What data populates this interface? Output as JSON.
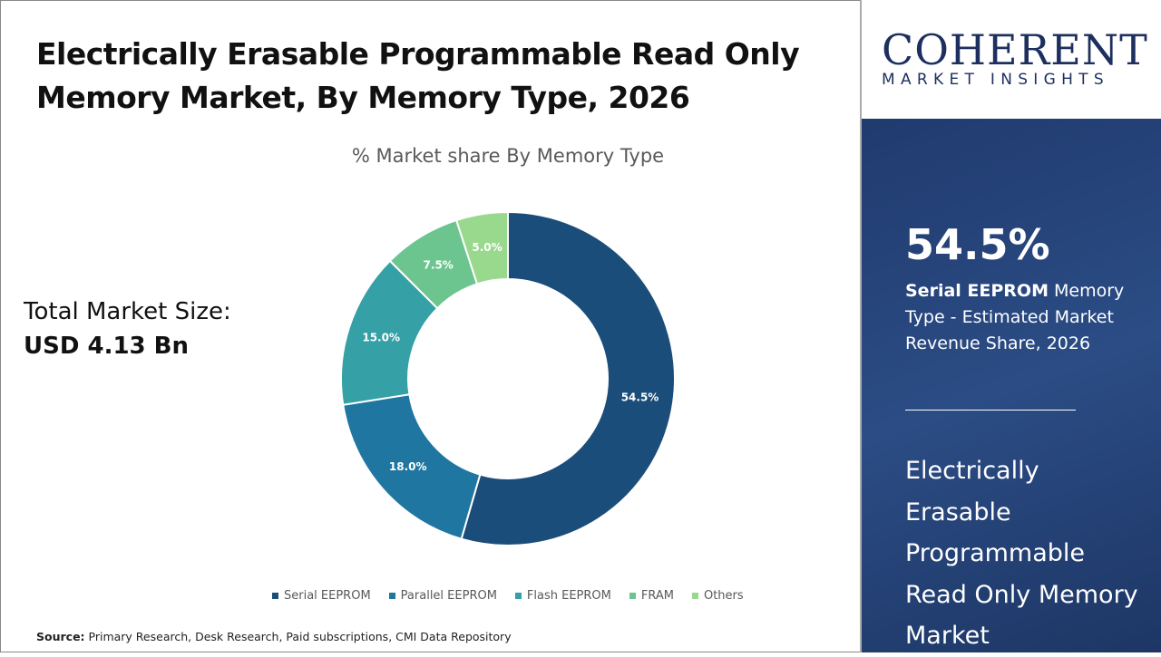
{
  "title": "Electrically Erasable Programmable Read Only Memory Market, By Memory Type, 2026",
  "total": {
    "label": "Total Market Size:",
    "value": "USD 4.13 Bn"
  },
  "source": {
    "label": "Source:",
    "text": "Primary Research, Desk Research, Paid subscriptions, CMI Data Repository"
  },
  "logo": {
    "top": "COHERENT",
    "bottom": "MARKET INSIGHTS"
  },
  "side": {
    "pct": "54.5%",
    "bold": "Serial EEPROM",
    "rest": " Memory Type - Estimated Market Revenue Share, 2026",
    "market": "Electrically Erasable Programmable Read Only Memory Market"
  },
  "chart_data": {
    "type": "pie",
    "donut": true,
    "title": "% Market share By Memory Type",
    "categories": [
      "Serial EEPROM",
      "Parallel EEPROM",
      "Flash EEPROM",
      "FRAM",
      "Others"
    ],
    "values": [
      54.5,
      18.0,
      15.0,
      7.5,
      5.0
    ],
    "labels": [
      "54.5%",
      "18.0%",
      "15.0%",
      "7.5%",
      "5.0%"
    ],
    "colors": [
      "#1b4d7a",
      "#1f76a0",
      "#35a0a6",
      "#6cc58f",
      "#98d98e"
    ],
    "legend": "bottom"
  }
}
